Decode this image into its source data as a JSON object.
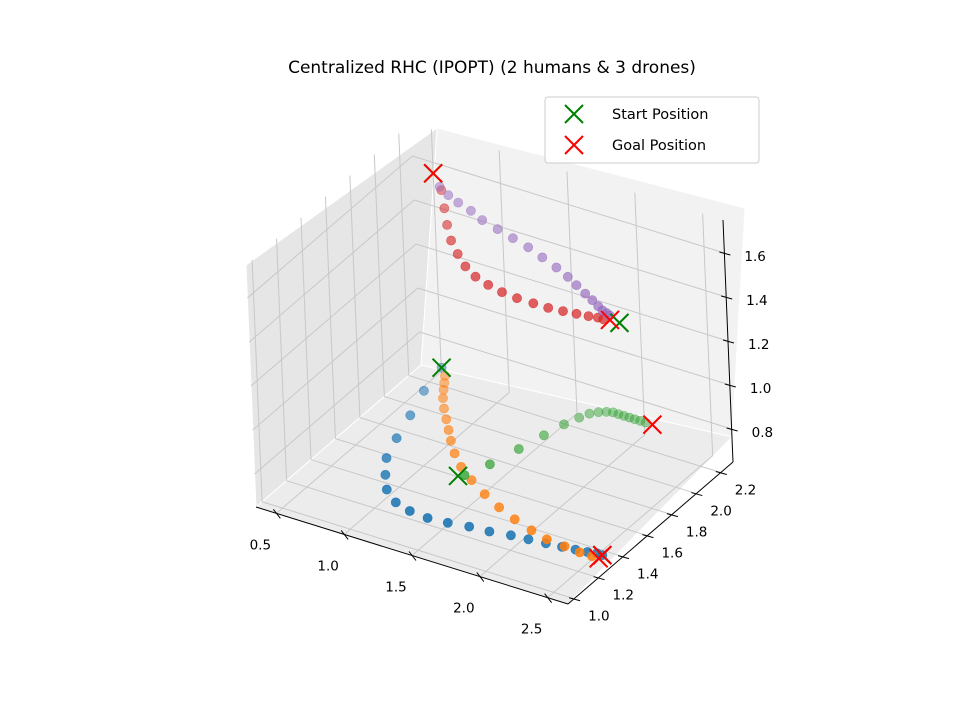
{
  "chart_data": {
    "type": "scatter",
    "projection": "3d",
    "title": "Centralized RHC (IPOPT) (2 humans & 3 drones)",
    "xlabel": "",
    "ylabel": "",
    "zlabel": "",
    "xlim": [
      0.35,
      2.65
    ],
    "ylim": [
      0.95,
      2.3
    ],
    "zlim": [
      0.65,
      1.75
    ],
    "xticks": [
      "0.5",
      "1.0",
      "1.5",
      "2.0",
      "2.5"
    ],
    "yticks": [
      "1.0",
      "1.2",
      "1.4",
      "1.6",
      "1.8",
      "2.0",
      "2.2"
    ],
    "zticks": [
      "0.8",
      "1.0",
      "1.2",
      "1.4",
      "1.6"
    ],
    "grid": true,
    "legend_position": "top-right",
    "legend": [
      {
        "label": "Start Position",
        "marker": "x",
        "color": "#008000"
      },
      {
        "label": "Goal Position",
        "marker": "x",
        "color": "#ff0000"
      }
    ],
    "series": [
      {
        "color": "#1f77b4",
        "z": 0.7,
        "points": [
          [
            0.55,
            2.25
          ],
          [
            0.6,
            2.05
          ],
          [
            0.68,
            1.85
          ],
          [
            0.75,
            1.66
          ],
          [
            0.82,
            1.5
          ],
          [
            0.92,
            1.38
          ],
          [
            1.02,
            1.28
          ],
          [
            1.15,
            1.21
          ],
          [
            1.28,
            1.18
          ],
          [
            1.42,
            1.17
          ],
          [
            1.56,
            1.18
          ],
          [
            1.7,
            1.2
          ],
          [
            1.84,
            1.21
          ],
          [
            1.98,
            1.23
          ],
          [
            2.1,
            1.24
          ],
          [
            2.22,
            1.25
          ],
          [
            2.33,
            1.26
          ],
          [
            2.42,
            1.27
          ],
          [
            2.5,
            1.28
          ],
          [
            2.56,
            1.29
          ],
          [
            2.6,
            1.29
          ]
        ],
        "start": [
          2.6,
          1.29
        ],
        "goal": [
          2.6,
          1.29
        ]
      },
      {
        "color": "#ff7f0e",
        "z": 0.7,
        "points": [
          [
            0.62,
            2.2
          ],
          [
            0.66,
            2.15
          ],
          [
            0.7,
            2.1
          ],
          [
            0.75,
            2.04
          ],
          [
            0.82,
            1.97
          ],
          [
            0.9,
            1.9
          ],
          [
            0.98,
            1.83
          ],
          [
            1.06,
            1.76
          ],
          [
            1.16,
            1.68
          ],
          [
            1.28,
            1.6
          ],
          [
            1.42,
            1.53
          ],
          [
            1.58,
            1.46
          ],
          [
            1.74,
            1.4
          ],
          [
            1.9,
            1.35
          ],
          [
            2.06,
            1.31
          ],
          [
            2.2,
            1.28
          ],
          [
            2.34,
            1.27
          ],
          [
            2.46,
            1.26
          ],
          [
            2.55,
            1.26
          ]
        ],
        "start": [
          0.55,
          2.25
        ],
        "goal": [
          2.6,
          1.26
        ]
      },
      {
        "color": "#2ca02c",
        "z": 0.7,
        "points": [
          [
            1.35,
            1.55
          ],
          [
            1.42,
            1.68
          ],
          [
            1.48,
            1.85
          ],
          [
            1.53,
            2.0
          ],
          [
            1.57,
            2.12
          ],
          [
            1.61,
            2.2
          ],
          [
            1.64,
            2.25
          ],
          [
            1.68,
            2.28
          ],
          [
            1.72,
            2.3
          ],
          [
            1.76,
            2.31
          ],
          [
            1.8,
            2.31
          ],
          [
            1.84,
            2.31
          ],
          [
            1.88,
            2.31
          ],
          [
            1.92,
            2.31
          ],
          [
            1.96,
            2.31
          ],
          [
            2.0,
            2.31
          ]
        ],
        "start": [
          1.32,
          1.53
        ],
        "goal": [
          2.05,
          2.31
        ]
      },
      {
        "color": "#d62728",
        "z": 1.55,
        "points": [
          [
            0.65,
            2.2
          ],
          [
            0.78,
            2.08
          ],
          [
            0.9,
            1.97
          ],
          [
            1.02,
            1.87
          ],
          [
            1.14,
            1.79
          ],
          [
            1.26,
            1.72
          ],
          [
            1.38,
            1.67
          ],
          [
            1.5,
            1.64
          ],
          [
            1.62,
            1.62
          ],
          [
            1.74,
            1.61
          ],
          [
            1.86,
            1.61
          ],
          [
            1.97,
            1.61
          ],
          [
            2.07,
            1.62
          ],
          [
            2.16,
            1.63
          ],
          [
            2.24,
            1.64
          ],
          [
            2.3,
            1.65
          ],
          [
            2.34,
            1.65
          ]
        ],
        "start": [
          0.5,
          2.3
        ],
        "goal": [
          2.38,
          1.66
        ]
      },
      {
        "color": "#9467bd",
        "z": 1.55,
        "points": [
          [
            0.62,
            2.22
          ],
          [
            0.72,
            2.18
          ],
          [
            0.82,
            2.15
          ],
          [
            0.94,
            2.12
          ],
          [
            1.06,
            2.08
          ],
          [
            1.2,
            2.05
          ],
          [
            1.34,
            2.02
          ],
          [
            1.48,
            1.99
          ],
          [
            1.62,
            1.95
          ],
          [
            1.76,
            1.91
          ],
          [
            1.88,
            1.87
          ],
          [
            1.98,
            1.83
          ],
          [
            2.08,
            1.79
          ],
          [
            2.16,
            1.76
          ],
          [
            2.23,
            1.73
          ],
          [
            2.28,
            1.71
          ],
          [
            2.32,
            1.7
          ],
          [
            2.35,
            1.69
          ]
        ],
        "start": [
          2.45,
          1.66
        ],
        "goal": [
          0.5,
          2.3
        ]
      }
    ]
  }
}
